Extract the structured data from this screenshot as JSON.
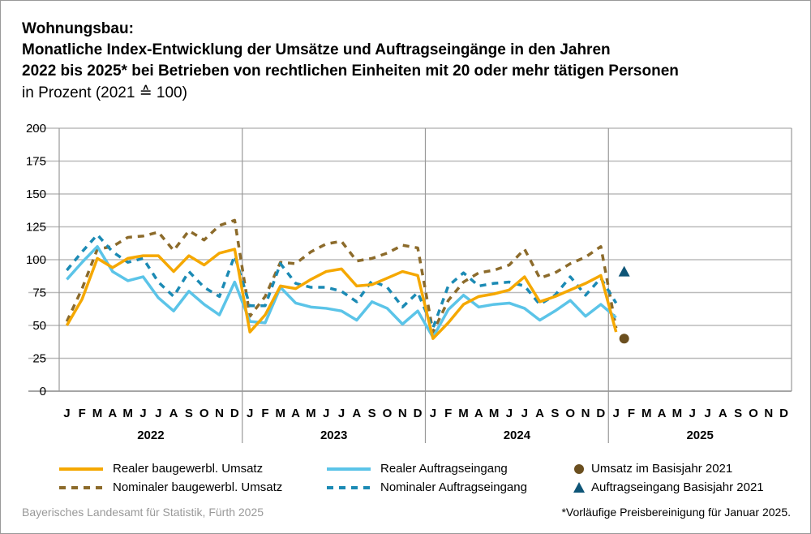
{
  "chart_data": {
    "type": "line",
    "title": "Wohnungsbau:",
    "subtitle_lines": [
      "Monatliche Index-Entwicklung der Umsätze und Auftragseingänge in den Jahren",
      "2022 bis 2025* bei Betrieben von rechtlichen Einheiten mit 20 oder mehr tätigen Personen"
    ],
    "unit": "in Prozent (2021 ≙ 100)",
    "ylim": [
      0,
      200
    ],
    "yticks": [
      0,
      25,
      50,
      75,
      100,
      125,
      150,
      175,
      200
    ],
    "month_labels": [
      "J",
      "F",
      "M",
      "A",
      "M",
      "J",
      "J",
      "A",
      "S",
      "O",
      "N",
      "D"
    ],
    "years": [
      "2022",
      "2023",
      "2024",
      "2025"
    ],
    "grid": true,
    "legend_position": "bottom",
    "series": [
      {
        "name": "Realer baugewerbl. Umsatz",
        "style": "solid",
        "color": "#f5a800",
        "values": [
          50,
          70,
          101,
          94,
          101,
          103,
          103,
          91,
          103,
          96,
          105,
          108,
          45,
          58,
          80,
          78,
          85,
          91,
          93,
          80,
          81,
          86,
          91,
          88,
          40,
          52,
          66,
          72,
          74,
          77,
          87,
          68,
          72,
          77,
          82,
          88,
          45
        ]
      },
      {
        "name": "Nominaler baugewerbl. Umsatz",
        "style": "dashed",
        "color": "#8c6b2b",
        "values": [
          53,
          78,
          108,
          110,
          117,
          118,
          121,
          107,
          122,
          115,
          126,
          130,
          57,
          72,
          98,
          97,
          106,
          112,
          114,
          99,
          101,
          105,
          111,
          109,
          45,
          69,
          83,
          90,
          92,
          96,
          108,
          86,
          90,
          97,
          102,
          110,
          48
        ]
      },
      {
        "name": "Realer Auftragseingang",
        "style": "solid",
        "color": "#5bc4e8",
        "values": [
          85,
          98,
          110,
          91,
          84,
          87,
          71,
          61,
          76,
          66,
          58,
          83,
          53,
          52,
          79,
          67,
          64,
          63,
          61,
          54,
          68,
          63,
          51,
          61,
          41,
          62,
          73,
          64,
          66,
          67,
          63,
          54,
          61,
          69,
          57,
          66,
          56
        ]
      },
      {
        "name": "Nominaler Auftragseingang",
        "style": "dashed",
        "color": "#1b8ab4",
        "values": [
          92,
          106,
          119,
          106,
          98,
          101,
          83,
          72,
          91,
          79,
          72,
          103,
          65,
          65,
          97,
          82,
          79,
          79,
          76,
          68,
          84,
          79,
          64,
          75,
          48,
          80,
          90,
          80,
          82,
          83,
          80,
          66,
          73,
          87,
          73,
          86,
          67
        ]
      }
    ],
    "markers": [
      {
        "name": "Umsatz im Basisjahr 2021",
        "shape": "circle",
        "color": "#6b4f1f",
        "month": "J 2025",
        "value": 40
      },
      {
        "name": "Auftragseingang Basisjahr 2021",
        "shape": "triangle",
        "color": "#0e5577",
        "month": "J 2025",
        "value": 91
      }
    ]
  },
  "footer": {
    "source": "Bayerisches Landesamt für Statistik, Fürth 2025",
    "note": "*Vorläufige Preisbereinigung für Januar 2025."
  }
}
